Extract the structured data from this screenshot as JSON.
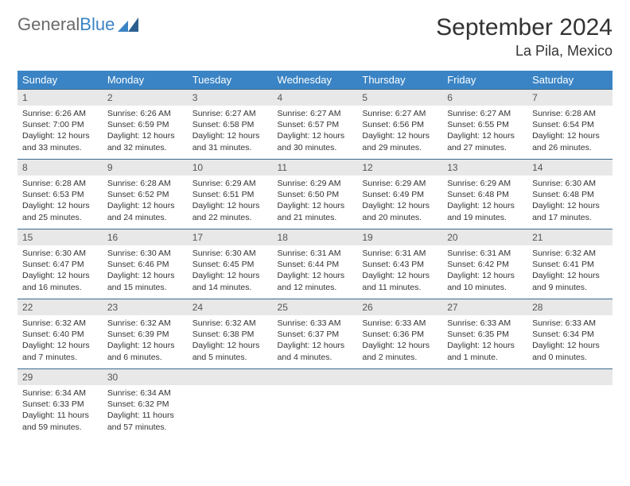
{
  "logo": {
    "text1": "General",
    "text2": "Blue"
  },
  "title": "September 2024",
  "location": "La Pila, Mexico",
  "colors": {
    "header_bg": "#3a84c5",
    "header_text": "#ffffff",
    "daynum_bg": "#e8e8e8",
    "border": "#3a6a8f",
    "logo_gray": "#6a6a6a",
    "logo_blue": "#3a84c5"
  },
  "weekdays": [
    "Sunday",
    "Monday",
    "Tuesday",
    "Wednesday",
    "Thursday",
    "Friday",
    "Saturday"
  ],
  "weeks": [
    [
      {
        "n": "1",
        "sr": "Sunrise: 6:26 AM",
        "ss": "Sunset: 7:00 PM",
        "d1": "Daylight: 12 hours",
        "d2": "and 33 minutes."
      },
      {
        "n": "2",
        "sr": "Sunrise: 6:26 AM",
        "ss": "Sunset: 6:59 PM",
        "d1": "Daylight: 12 hours",
        "d2": "and 32 minutes."
      },
      {
        "n": "3",
        "sr": "Sunrise: 6:27 AM",
        "ss": "Sunset: 6:58 PM",
        "d1": "Daylight: 12 hours",
        "d2": "and 31 minutes."
      },
      {
        "n": "4",
        "sr": "Sunrise: 6:27 AM",
        "ss": "Sunset: 6:57 PM",
        "d1": "Daylight: 12 hours",
        "d2": "and 30 minutes."
      },
      {
        "n": "5",
        "sr": "Sunrise: 6:27 AM",
        "ss": "Sunset: 6:56 PM",
        "d1": "Daylight: 12 hours",
        "d2": "and 29 minutes."
      },
      {
        "n": "6",
        "sr": "Sunrise: 6:27 AM",
        "ss": "Sunset: 6:55 PM",
        "d1": "Daylight: 12 hours",
        "d2": "and 27 minutes."
      },
      {
        "n": "7",
        "sr": "Sunrise: 6:28 AM",
        "ss": "Sunset: 6:54 PM",
        "d1": "Daylight: 12 hours",
        "d2": "and 26 minutes."
      }
    ],
    [
      {
        "n": "8",
        "sr": "Sunrise: 6:28 AM",
        "ss": "Sunset: 6:53 PM",
        "d1": "Daylight: 12 hours",
        "d2": "and 25 minutes."
      },
      {
        "n": "9",
        "sr": "Sunrise: 6:28 AM",
        "ss": "Sunset: 6:52 PM",
        "d1": "Daylight: 12 hours",
        "d2": "and 24 minutes."
      },
      {
        "n": "10",
        "sr": "Sunrise: 6:29 AM",
        "ss": "Sunset: 6:51 PM",
        "d1": "Daylight: 12 hours",
        "d2": "and 22 minutes."
      },
      {
        "n": "11",
        "sr": "Sunrise: 6:29 AM",
        "ss": "Sunset: 6:50 PM",
        "d1": "Daylight: 12 hours",
        "d2": "and 21 minutes."
      },
      {
        "n": "12",
        "sr": "Sunrise: 6:29 AM",
        "ss": "Sunset: 6:49 PM",
        "d1": "Daylight: 12 hours",
        "d2": "and 20 minutes."
      },
      {
        "n": "13",
        "sr": "Sunrise: 6:29 AM",
        "ss": "Sunset: 6:48 PM",
        "d1": "Daylight: 12 hours",
        "d2": "and 19 minutes."
      },
      {
        "n": "14",
        "sr": "Sunrise: 6:30 AM",
        "ss": "Sunset: 6:48 PM",
        "d1": "Daylight: 12 hours",
        "d2": "and 17 minutes."
      }
    ],
    [
      {
        "n": "15",
        "sr": "Sunrise: 6:30 AM",
        "ss": "Sunset: 6:47 PM",
        "d1": "Daylight: 12 hours",
        "d2": "and 16 minutes."
      },
      {
        "n": "16",
        "sr": "Sunrise: 6:30 AM",
        "ss": "Sunset: 6:46 PM",
        "d1": "Daylight: 12 hours",
        "d2": "and 15 minutes."
      },
      {
        "n": "17",
        "sr": "Sunrise: 6:30 AM",
        "ss": "Sunset: 6:45 PM",
        "d1": "Daylight: 12 hours",
        "d2": "and 14 minutes."
      },
      {
        "n": "18",
        "sr": "Sunrise: 6:31 AM",
        "ss": "Sunset: 6:44 PM",
        "d1": "Daylight: 12 hours",
        "d2": "and 12 minutes."
      },
      {
        "n": "19",
        "sr": "Sunrise: 6:31 AM",
        "ss": "Sunset: 6:43 PM",
        "d1": "Daylight: 12 hours",
        "d2": "and 11 minutes."
      },
      {
        "n": "20",
        "sr": "Sunrise: 6:31 AM",
        "ss": "Sunset: 6:42 PM",
        "d1": "Daylight: 12 hours",
        "d2": "and 10 minutes."
      },
      {
        "n": "21",
        "sr": "Sunrise: 6:32 AM",
        "ss": "Sunset: 6:41 PM",
        "d1": "Daylight: 12 hours",
        "d2": "and 9 minutes."
      }
    ],
    [
      {
        "n": "22",
        "sr": "Sunrise: 6:32 AM",
        "ss": "Sunset: 6:40 PM",
        "d1": "Daylight: 12 hours",
        "d2": "and 7 minutes."
      },
      {
        "n": "23",
        "sr": "Sunrise: 6:32 AM",
        "ss": "Sunset: 6:39 PM",
        "d1": "Daylight: 12 hours",
        "d2": "and 6 minutes."
      },
      {
        "n": "24",
        "sr": "Sunrise: 6:32 AM",
        "ss": "Sunset: 6:38 PM",
        "d1": "Daylight: 12 hours",
        "d2": "and 5 minutes."
      },
      {
        "n": "25",
        "sr": "Sunrise: 6:33 AM",
        "ss": "Sunset: 6:37 PM",
        "d1": "Daylight: 12 hours",
        "d2": "and 4 minutes."
      },
      {
        "n": "26",
        "sr": "Sunrise: 6:33 AM",
        "ss": "Sunset: 6:36 PM",
        "d1": "Daylight: 12 hours",
        "d2": "and 2 minutes."
      },
      {
        "n": "27",
        "sr": "Sunrise: 6:33 AM",
        "ss": "Sunset: 6:35 PM",
        "d1": "Daylight: 12 hours",
        "d2": "and 1 minute."
      },
      {
        "n": "28",
        "sr": "Sunrise: 6:33 AM",
        "ss": "Sunset: 6:34 PM",
        "d1": "Daylight: 12 hours",
        "d2": "and 0 minutes."
      }
    ],
    [
      {
        "n": "29",
        "sr": "Sunrise: 6:34 AM",
        "ss": "Sunset: 6:33 PM",
        "d1": "Daylight: 11 hours",
        "d2": "and 59 minutes."
      },
      {
        "n": "30",
        "sr": "Sunrise: 6:34 AM",
        "ss": "Sunset: 6:32 PM",
        "d1": "Daylight: 11 hours",
        "d2": "and 57 minutes."
      },
      {
        "empty": true
      },
      {
        "empty": true
      },
      {
        "empty": true
      },
      {
        "empty": true
      },
      {
        "empty": true
      }
    ]
  ]
}
